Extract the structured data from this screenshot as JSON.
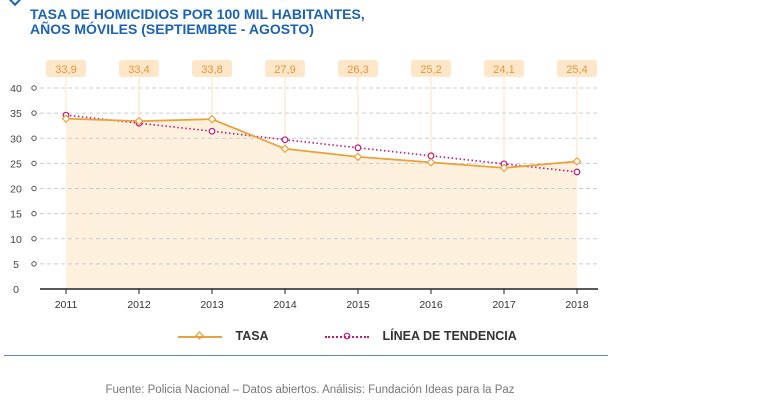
{
  "title_line1": "TASA DE HOMICIDIOS POR 100 MIL HABITANTES,",
  "title_line2": "AÑOS MÓVILES (SEPTIEMBRE - AGOSTO)",
  "source": "Fuente: Policia Nacional – Datos abiertos. Análisis: Fundación Ideas para la Paz",
  "colors": {
    "title": "#1b63b0",
    "tasa": "#e9a23b",
    "trend": "#c2187a",
    "fill": "#fdf1de",
    "label_bg": "#fde7c8",
    "rule": "#5b86c4"
  },
  "chart_data": {
    "type": "line",
    "title": "TASA DE HOMICIDIOS POR 100 MIL HABITANTES, AÑOS MÓVILES (SEPTIEMBRE - AGOSTO)",
    "x": [
      "2011",
      "2012",
      "2013",
      "2014",
      "2015",
      "2016",
      "2017",
      "2018"
    ],
    "ylim": [
      0,
      40
    ],
    "yticks": [
      0,
      5,
      10,
      15,
      20,
      25,
      30,
      35,
      40
    ],
    "grid": true,
    "legend_position": "bottom",
    "series": [
      {
        "name": "TASA",
        "values": [
          33.9,
          33.4,
          33.8,
          27.9,
          26.3,
          25.2,
          24.1,
          25.4
        ],
        "labels": [
          "33,9",
          "33,4",
          "33,8",
          "27,9",
          "26,3",
          "25,2",
          "24,1",
          "25,4"
        ]
      },
      {
        "name": "LÍNEA DE TENDENCIA",
        "values": [
          34.6,
          33.0,
          31.4,
          29.7,
          28.1,
          26.5,
          24.9,
          23.3
        ]
      }
    ]
  }
}
